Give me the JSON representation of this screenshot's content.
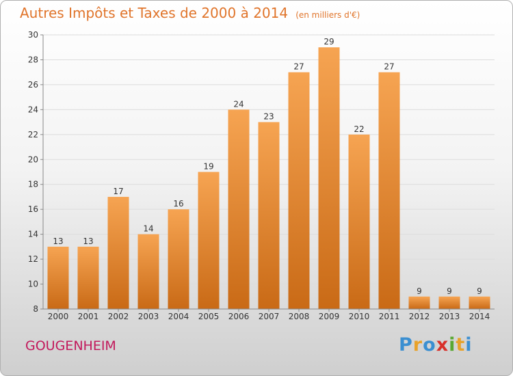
{
  "header": {
    "title": "Autres Impôts et Taxes de 2000 à 2014",
    "unit_note": "(en milliers d'€)"
  },
  "footer": {
    "commune": "GOUGENHEIM"
  },
  "logo": {
    "letters": [
      "P",
      "r",
      "o",
      "x",
      "i",
      "t",
      "i"
    ],
    "colors": [
      "#3b8fd1",
      "#e8a22a",
      "#3b8fd1",
      "#d8302a",
      "#5aa832",
      "#e8a22a",
      "#3b8fd1"
    ]
  },
  "chart_data": {
    "type": "bar",
    "title": "Autres Impôts et Taxes de 2000 à 2014",
    "ylabel": "",
    "xlabel": "",
    "categories": [
      "2000",
      "2001",
      "2002",
      "2003",
      "2004",
      "2005",
      "2006",
      "2007",
      "2008",
      "2009",
      "2010",
      "2011",
      "2012",
      "2013",
      "2014"
    ],
    "values": [
      13,
      13,
      17,
      14,
      16,
      19,
      24,
      23,
      27,
      29,
      22,
      27,
      9,
      9,
      9
    ],
    "ylim": [
      8,
      30
    ],
    "yticks": [
      8,
      10,
      12,
      14,
      16,
      18,
      20,
      22,
      24,
      26,
      28,
      30
    ],
    "grid": true,
    "bar_color": "#f08f3a"
  }
}
